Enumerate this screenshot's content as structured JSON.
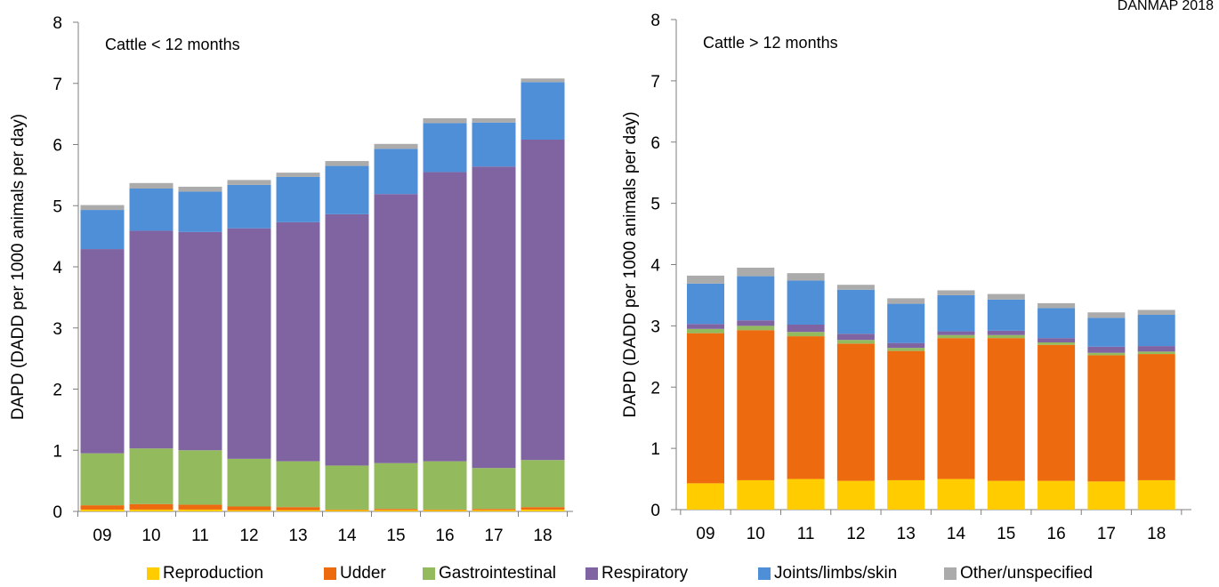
{
  "watermark": "DANMAP 2018",
  "legend": [
    {
      "label": "Reproduction",
      "color": "#FFCC00"
    },
    {
      "label": "Udder",
      "color": "#EE6A0E"
    },
    {
      "label": "Gastrointestinal",
      "color": "#94BA5E"
    },
    {
      "label": "Respiratory",
      "color": "#8064A2"
    },
    {
      "label": "Joints/limbs/skin",
      "color": "#4F8FD8"
    },
    {
      "label": "Other/unspecified",
      "color": "#ABABAB"
    }
  ],
  "chart_data": [
    {
      "type": "bar",
      "stacked": true,
      "title": "Cattle < 12 months",
      "xlabel": "",
      "ylabel": "DAPD (DADD per 1000 animals per day)",
      "ylim": [
        0,
        8
      ],
      "yticks": [
        "0",
        "1",
        "2",
        "3",
        "4",
        "5",
        "6",
        "7",
        "8"
      ],
      "grid": false,
      "categories": [
        "09",
        "10",
        "11",
        "12",
        "13",
        "14",
        "15",
        "16",
        "17",
        "18"
      ],
      "series": [
        {
          "name": "Reproduction",
          "values": [
            0.03,
            0.03,
            0.03,
            0.02,
            0.02,
            0.02,
            0.02,
            0.02,
            0.02,
            0.03
          ]
        },
        {
          "name": "Udder",
          "values": [
            0.07,
            0.09,
            0.08,
            0.06,
            0.05,
            0.01,
            0.02,
            0.01,
            0.02,
            0.04
          ]
        },
        {
          "name": "Gastrointestinal",
          "values": [
            0.85,
            0.91,
            0.89,
            0.78,
            0.75,
            0.72,
            0.75,
            0.79,
            0.67,
            0.77
          ]
        },
        {
          "name": "Respiratory",
          "values": [
            3.34,
            3.56,
            3.57,
            3.77,
            3.91,
            4.11,
            4.4,
            4.73,
            4.93,
            5.24
          ]
        },
        {
          "name": "Joints/limbs/skin",
          "values": [
            0.64,
            0.69,
            0.66,
            0.71,
            0.74,
            0.79,
            0.74,
            0.8,
            0.72,
            0.94
          ]
        },
        {
          "name": "Other/unspecified",
          "values": [
            0.08,
            0.09,
            0.08,
            0.08,
            0.07,
            0.08,
            0.08,
            0.08,
            0.07,
            0.06
          ]
        }
      ]
    },
    {
      "type": "bar",
      "stacked": true,
      "title": "Cattle > 12 months",
      "xlabel": "",
      "ylabel": "DAPD (DADD per 1000 animals per day)",
      "ylim": [
        0,
        8
      ],
      "yticks": [
        "0",
        "1",
        "2",
        "3",
        "4",
        "5",
        "6",
        "7",
        "8"
      ],
      "grid": false,
      "categories": [
        "09",
        "10",
        "11",
        "12",
        "13",
        "14",
        "15",
        "16",
        "17",
        "18"
      ],
      "series": [
        {
          "name": "Reproduction",
          "values": [
            0.43,
            0.48,
            0.5,
            0.47,
            0.48,
            0.5,
            0.47,
            0.47,
            0.46,
            0.48
          ]
        },
        {
          "name": "Udder",
          "values": [
            2.45,
            2.45,
            2.33,
            2.24,
            2.11,
            2.3,
            2.33,
            2.22,
            2.06,
            2.06
          ]
        },
        {
          "name": "Gastrointestinal",
          "values": [
            0.07,
            0.07,
            0.07,
            0.06,
            0.05,
            0.05,
            0.05,
            0.04,
            0.04,
            0.04
          ]
        },
        {
          "name": "Respiratory",
          "values": [
            0.08,
            0.09,
            0.12,
            0.1,
            0.08,
            0.06,
            0.07,
            0.07,
            0.1,
            0.09
          ]
        },
        {
          "name": "Joints/limbs/skin",
          "values": [
            0.66,
            0.72,
            0.72,
            0.72,
            0.64,
            0.59,
            0.51,
            0.49,
            0.47,
            0.51
          ]
        },
        {
          "name": "Other/unspecified",
          "values": [
            0.13,
            0.14,
            0.12,
            0.08,
            0.09,
            0.08,
            0.09,
            0.08,
            0.09,
            0.08
          ]
        }
      ]
    }
  ]
}
